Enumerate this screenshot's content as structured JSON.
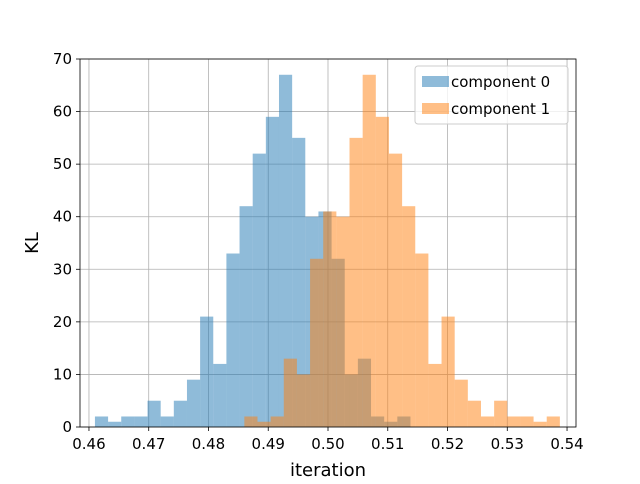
{
  "chart_data": {
    "type": "bar",
    "xlabel": "iteration",
    "ylabel": "KL",
    "xlim": [
      0.4585,
      0.5415
    ],
    "ylim": [
      0,
      70
    ],
    "grid": true,
    "legend_position": "top-right",
    "x_ticks": [
      "0.46",
      "0.47",
      "0.48",
      "0.49",
      "0.50",
      "0.51",
      "0.52",
      "0.53",
      "0.54"
    ],
    "x_tick_values": [
      0.46,
      0.47,
      0.48,
      0.49,
      0.5,
      0.51,
      0.52,
      0.53,
      0.54
    ],
    "y_ticks": [
      "0",
      "10",
      "20",
      "30",
      "40",
      "50",
      "60",
      "70"
    ],
    "y_tick_values": [
      0,
      10,
      20,
      30,
      40,
      50,
      60,
      70
    ],
    "series": [
      {
        "name": "component 0",
        "color": "#1f77b4",
        "alpha": 0.5,
        "bin_edges": [
          0.461,
          0.4632,
          0.4654,
          0.4676,
          0.4698,
          0.472,
          0.4742,
          0.4764,
          0.4786,
          0.4808,
          0.483,
          0.4852,
          0.4874,
          0.4896,
          0.4918,
          0.494,
          0.4962,
          0.4984,
          0.5006,
          0.5028,
          0.505,
          0.5072,
          0.5094,
          0.5116,
          0.5138
        ],
        "counts": [
          2,
          1,
          2,
          2,
          5,
          2,
          5,
          9,
          21,
          12,
          33,
          42,
          52,
          59,
          67,
          55,
          40,
          41,
          32,
          10,
          13,
          2,
          1,
          2
        ]
      },
      {
        "name": "component 1",
        "color": "#ff7f0e",
        "alpha": 0.5,
        "bin_edges": [
          0.486,
          0.4882,
          0.4904,
          0.4926,
          0.4948,
          0.497,
          0.4992,
          0.5014,
          0.5036,
          0.5058,
          0.508,
          0.5102,
          0.5124,
          0.5146,
          0.5168,
          0.519,
          0.5212,
          0.5234,
          0.5256,
          0.5278,
          0.53,
          0.5322,
          0.5344,
          0.5366,
          0.5388
        ],
        "counts": [
          2,
          1,
          2,
          13,
          10,
          32,
          41,
          40,
          55,
          67,
          59,
          52,
          42,
          33,
          12,
          21,
          9,
          5,
          2,
          5,
          2,
          2,
          1,
          2
        ]
      }
    ]
  }
}
